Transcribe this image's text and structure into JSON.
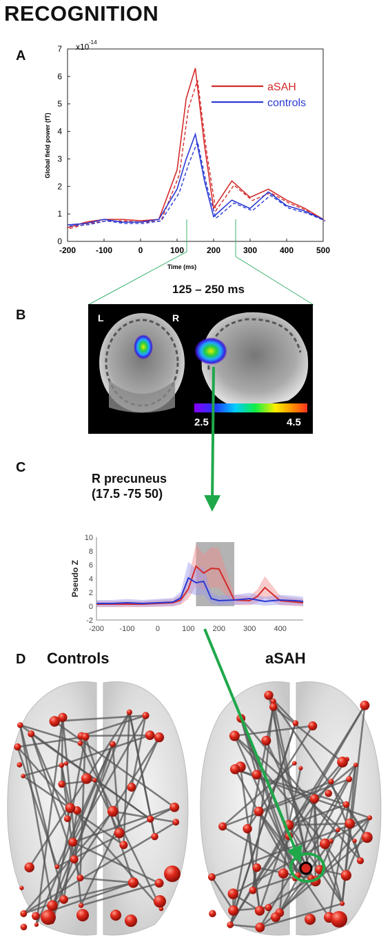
{
  "figure": {
    "title": "RECOGNITION",
    "panel_labels": {
      "a": "A",
      "b": "B",
      "c": "C",
      "d": "D"
    }
  },
  "panel_a": {
    "ylabel": "Global field power (fT)",
    "xlabel": "Time (ms)",
    "exponent": "x10",
    "exponent_power": "-14",
    "legend": [
      {
        "label": "aSAH",
        "color": "#d42a2a"
      },
      {
        "label": "controls",
        "color": "#2a3ad4"
      }
    ]
  },
  "panel_b": {
    "window": "125 – 250 ms",
    "left_marker": "L",
    "right_marker": "R",
    "colorbar_min": "2.5",
    "colorbar_max": "4.5"
  },
  "panel_c": {
    "region": "R precuneus",
    "coords": "(17.5 -75 50)",
    "ylabel": "Pseudo Z"
  },
  "panel_d": {
    "left_title": "Controls",
    "right_title": "aSAH"
  },
  "colors": {
    "asah": "#d42a2a",
    "controls": "#2a3ad4",
    "arrow": "#1fa84a",
    "node": "#d6261f"
  },
  "chart_data": [
    {
      "type": "line",
      "x": [
        -200,
        -150,
        -100,
        -50,
        0,
        50,
        100,
        125,
        150,
        175,
        200,
        250,
        300,
        350,
        400,
        450,
        500
      ],
      "series": [
        {
          "name": "aSAH",
          "values": [
            0.5,
            0.7,
            0.8,
            0.8,
            0.75,
            0.8,
            2.6,
            5.2,
            6.3,
            3.5,
            1.2,
            2.2,
            1.6,
            1.9,
            1.5,
            1.2,
            0.8
          ]
        },
        {
          "name": "controls",
          "values": [
            0.6,
            0.65,
            0.8,
            0.7,
            0.7,
            0.8,
            1.9,
            3.0,
            3.9,
            2.2,
            0.9,
            1.5,
            1.2,
            1.8,
            1.3,
            1.1,
            0.8
          ]
        }
      ],
      "xlabel": "Time (ms)",
      "ylabel": "Global field power (fT)",
      "xlim": [
        -200,
        500
      ],
      "ylim": [
        0,
        7
      ],
      "xticks": [
        -200,
        -100,
        0,
        100,
        200,
        300,
        400,
        500
      ],
      "yticks": [
        0,
        1,
        2,
        3,
        4,
        5,
        6,
        7
      ]
    },
    {
      "type": "line",
      "x": [
        -200,
        -150,
        -100,
        -50,
        0,
        50,
        75,
        100,
        125,
        150,
        175,
        200,
        250,
        300,
        325,
        350,
        400,
        450,
        475
      ],
      "series": [
        {
          "name": "aSAH",
          "values": [
            0.3,
            0.3,
            0.3,
            0.3,
            0.4,
            0.5,
            0.9,
            2.5,
            5.8,
            4.8,
            5.5,
            5.4,
            0.9,
            0.8,
            1.4,
            2.7,
            0.8,
            0.6,
            0.5
          ]
        },
        {
          "name": "controls",
          "values": [
            0.4,
            0.4,
            0.5,
            0.4,
            0.5,
            0.6,
            1.2,
            4.1,
            3.4,
            3.6,
            1.1,
            0.8,
            0.9,
            1.1,
            0.9,
            0.7,
            0.9,
            0.8,
            0.7
          ]
        }
      ],
      "ylabel": "Pseudo Z",
      "xlim": [
        -200,
        475
      ],
      "ylim": [
        -2,
        10
      ],
      "xticks": [
        -200,
        -100,
        0,
        100,
        200,
        300,
        400
      ],
      "yticks": [
        -2,
        0,
        2,
        4,
        6,
        8,
        10
      ],
      "highlight": [
        125,
        250
      ]
    }
  ]
}
